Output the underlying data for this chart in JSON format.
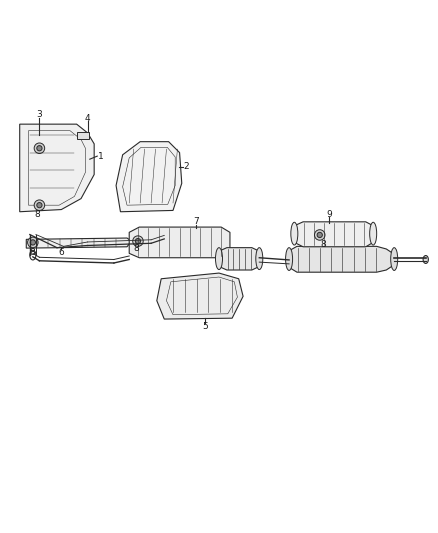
{
  "bg_color": "#ffffff",
  "line_color": "#2a2a2a",
  "figsize": [
    4.38,
    5.33
  ],
  "dpi": 100
}
